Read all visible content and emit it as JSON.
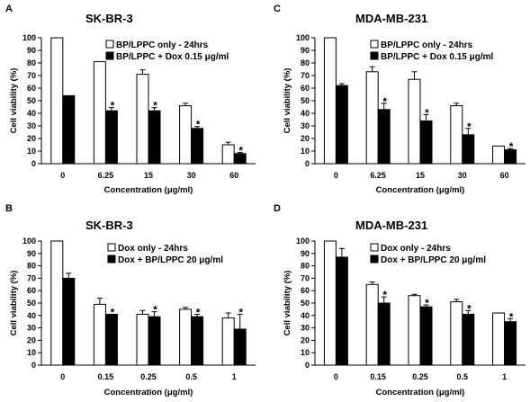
{
  "chart_data": [
    {
      "panel": "A",
      "type": "bar",
      "title": "SK-BR-3",
      "xlabel": "Concentration (μg/ml)",
      "ylabel": "Cell viability (%)",
      "ylim": [
        0,
        100
      ],
      "ytick_step": 10,
      "grid": false,
      "legend_position": "top-right",
      "categories": [
        "0",
        "6.25",
        "15",
        "30",
        "60"
      ],
      "series": [
        {
          "name": "BP/LPPC only - 24hrs",
          "color": "#ffffff",
          "values": [
            100,
            81,
            71,
            46,
            15
          ],
          "errors": [
            0,
            0,
            3.5,
            2,
            2
          ],
          "stars": [
            false,
            false,
            false,
            false,
            false
          ]
        },
        {
          "name": "BP/LPPC + Dox 0.15 μg/ml",
          "color": "#000000",
          "values": [
            54,
            42,
            42,
            28,
            8
          ],
          "errors": [
            0,
            2.5,
            2.5,
            1.5,
            1
          ],
          "stars": [
            false,
            true,
            true,
            true,
            true
          ]
        }
      ]
    },
    {
      "panel": "C",
      "type": "bar",
      "title": "MDA-MB-231",
      "xlabel": "Concentration (μg/ml)",
      "ylabel": "Cell viability (%)",
      "ylim": [
        0,
        100
      ],
      "ytick_step": 10,
      "grid": false,
      "legend_position": "top-right",
      "categories": [
        "0",
        "6.25",
        "15",
        "30",
        "60"
      ],
      "series": [
        {
          "name": "BP/LPPC only - 24hrs",
          "color": "#ffffff",
          "values": [
            100,
            73,
            67,
            46,
            14
          ],
          "errors": [
            0,
            4,
            6,
            2,
            0
          ],
          "stars": [
            false,
            false,
            false,
            false,
            false
          ]
        },
        {
          "name": "BP/LPPC + Dox 0.15 μg/ml",
          "color": "#000000",
          "values": [
            62,
            43,
            34,
            23,
            11
          ],
          "errors": [
            1.5,
            5,
            5,
            5,
            1
          ],
          "stars": [
            false,
            true,
            true,
            true,
            true
          ]
        }
      ]
    },
    {
      "panel": "B",
      "type": "bar",
      "title": "SK-BR-3",
      "xlabel": "Concentration (μg/ml)",
      "ylabel": "Cell viability (%)",
      "ylim": [
        0,
        100
      ],
      "ytick_step": 10,
      "grid": false,
      "legend_position": "top-right",
      "categories": [
        "0",
        "0.15",
        "0.25",
        "0.5",
        "1"
      ],
      "series": [
        {
          "name": "Dox only - 24hrs",
          "color": "#ffffff",
          "values": [
            100,
            49,
            41,
            45,
            38
          ],
          "errors": [
            0,
            5,
            3,
            1.5,
            4
          ],
          "stars": [
            false,
            false,
            false,
            false,
            false
          ]
        },
        {
          "name": "Dox + BP/LPPC 20 μg/ml",
          "color": "#000000",
          "values": [
            70,
            41,
            39,
            39,
            29
          ],
          "errors": [
            4,
            0,
            4,
            2,
            12
          ],
          "stars": [
            false,
            true,
            true,
            true,
            true
          ]
        }
      ]
    },
    {
      "panel": "D",
      "type": "bar",
      "title": "MDA-MB-231",
      "xlabel": "Concentration (μg/ml)",
      "ylabel": "Cell viability (%)",
      "ylim": [
        0,
        100
      ],
      "ytick_step": 10,
      "grid": false,
      "legend_position": "top-right",
      "categories": [
        "0",
        "0.15",
        "0.25",
        "0.5",
        "1"
      ],
      "series": [
        {
          "name": "Dox only - 24hrs",
          "color": "#ffffff",
          "values": [
            100,
            65,
            56,
            51,
            42
          ],
          "errors": [
            0,
            2,
            1,
            2,
            0
          ],
          "stars": [
            false,
            false,
            false,
            false,
            false
          ]
        },
        {
          "name": "Dox + BP/LPPC 20 μg/ml",
          "color": "#000000",
          "values": [
            87,
            50,
            47,
            41,
            35
          ],
          "errors": [
            7,
            5,
            1.5,
            3,
            2.5
          ],
          "stars": [
            false,
            true,
            true,
            true,
            true
          ]
        }
      ]
    }
  ],
  "star_symbol": "*"
}
